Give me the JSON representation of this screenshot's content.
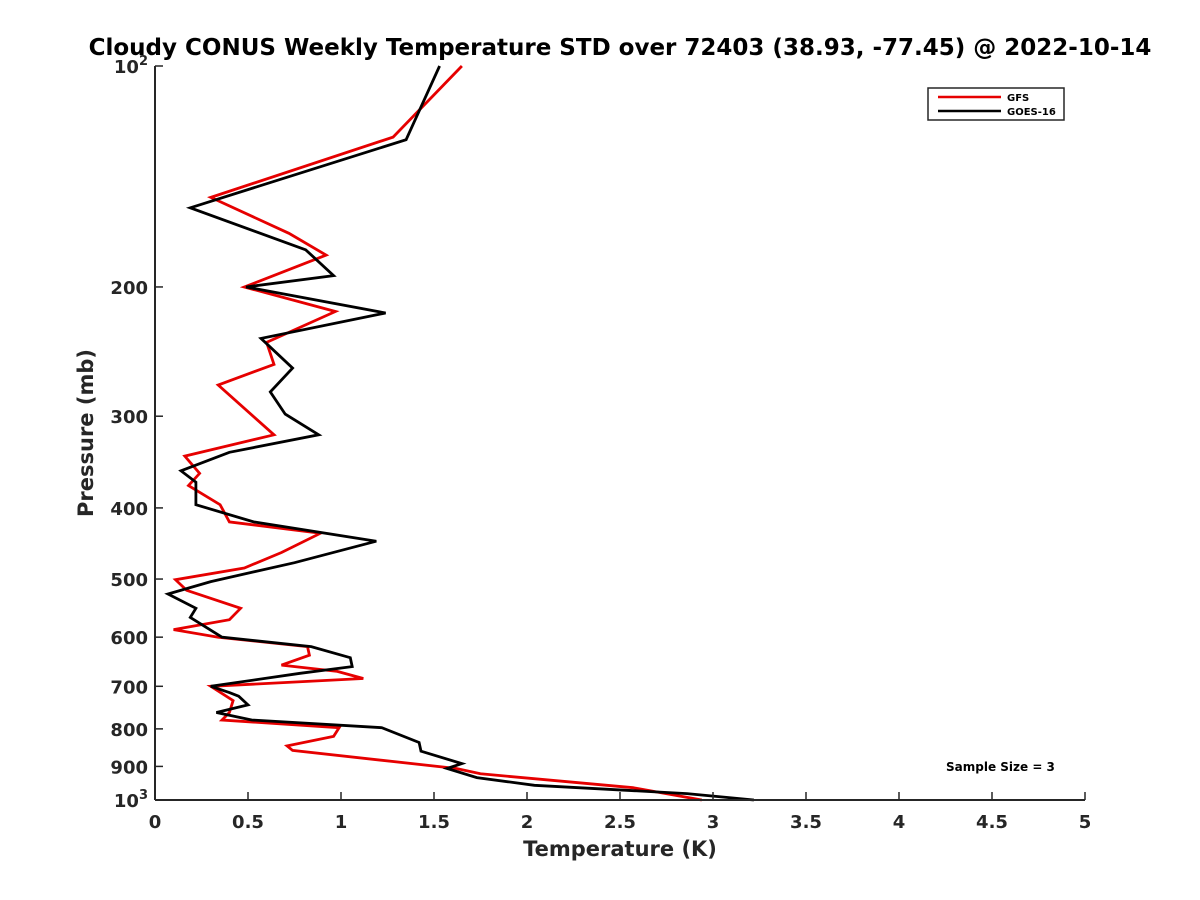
{
  "chart_data": {
    "type": "line",
    "title": "Cloudy CONUS Weekly Temperature STD over 72403 (38.93, -77.45) @ 2022-10-14",
    "xlabel": "Temperature (K)",
    "ylabel": "Pressure (mb)",
    "xlim": [
      0,
      5
    ],
    "ylim": [
      100,
      1000
    ],
    "y_scale": "log",
    "y_reversed": true,
    "grid": false,
    "legend_position": "top-right",
    "annotation": "Sample Size = 3",
    "x_ticks": [
      {
        "value": 0,
        "label": "0"
      },
      {
        "value": 0.5,
        "label": "0.5"
      },
      {
        "value": 1,
        "label": "1"
      },
      {
        "value": 1.5,
        "label": "1.5"
      },
      {
        "value": 2,
        "label": "2"
      },
      {
        "value": 2.5,
        "label": "2.5"
      },
      {
        "value": 3,
        "label": "3"
      },
      {
        "value": 3.5,
        "label": "3.5"
      },
      {
        "value": 4,
        "label": "4"
      },
      {
        "value": 4.5,
        "label": "4.5"
      },
      {
        "value": 5,
        "label": "5"
      }
    ],
    "y_ticks": [
      {
        "value": 100,
        "base": "10",
        "exp": "2"
      },
      {
        "value": 200,
        "label": "200"
      },
      {
        "value": 300,
        "label": "300"
      },
      {
        "value": 400,
        "label": "400"
      },
      {
        "value": 500,
        "label": "500"
      },
      {
        "value": 600,
        "label": "600"
      },
      {
        "value": 700,
        "label": "700"
      },
      {
        "value": 800,
        "label": "800"
      },
      {
        "value": 900,
        "label": "900"
      },
      {
        "value": 1000,
        "base": "10",
        "exp": "3"
      }
    ],
    "series": [
      {
        "name": "GFS",
        "color": "#e60000",
        "points": [
          [
            1.65,
            100
          ],
          [
            1.28,
            125
          ],
          [
            0.3,
            151
          ],
          [
            0.72,
            169
          ],
          [
            0.92,
            181
          ],
          [
            0.48,
            200
          ],
          [
            0.97,
            216
          ],
          [
            0.6,
            238
          ],
          [
            0.64,
            255
          ],
          [
            0.34,
            272
          ],
          [
            0.64,
            318
          ],
          [
            0.16,
            340
          ],
          [
            0.24,
            359
          ],
          [
            0.18,
            373
          ],
          [
            0.35,
            396
          ],
          [
            0.4,
            418
          ],
          [
            0.89,
            433
          ],
          [
            0.68,
            460
          ],
          [
            0.48,
            483
          ],
          [
            0.11,
            501
          ],
          [
            0.17,
            518
          ],
          [
            0.46,
            548
          ],
          [
            0.4,
            568
          ],
          [
            0.1,
            586
          ],
          [
            0.34,
            600
          ],
          [
            0.82,
            618
          ],
          [
            0.83,
            635
          ],
          [
            0.68,
            655
          ],
          [
            0.98,
            668
          ],
          [
            1.12,
            683
          ],
          [
            0.3,
            700
          ],
          [
            0.42,
            732
          ],
          [
            0.4,
            760
          ],
          [
            0.36,
            778
          ],
          [
            0.99,
            797
          ],
          [
            0.96,
            819
          ],
          [
            0.71,
            844
          ],
          [
            0.74,
            856
          ],
          [
            1.62,
            906
          ],
          [
            1.75,
            921
          ],
          [
            2.57,
            962
          ],
          [
            2.94,
            1000
          ]
        ]
      },
      {
        "name": "GOES-16",
        "color": "#000000",
        "points": [
          [
            1.53,
            100
          ],
          [
            1.35,
            126
          ],
          [
            0.19,
            156
          ],
          [
            0.81,
            178
          ],
          [
            0.96,
            193
          ],
          [
            0.49,
            200
          ],
          [
            1.24,
            217
          ],
          [
            0.57,
            235
          ],
          [
            0.74,
            258
          ],
          [
            0.62,
            278
          ],
          [
            0.7,
            298
          ],
          [
            0.88,
            318
          ],
          [
            0.4,
            336
          ],
          [
            0.14,
            356
          ],
          [
            0.22,
            369
          ],
          [
            0.22,
            396
          ],
          [
            0.53,
            418
          ],
          [
            1.19,
            444
          ],
          [
            0.75,
            475
          ],
          [
            0.3,
            504
          ],
          [
            0.07,
            524
          ],
          [
            0.22,
            548
          ],
          [
            0.19,
            564
          ],
          [
            0.36,
            600
          ],
          [
            0.84,
            618
          ],
          [
            1.05,
            640
          ],
          [
            1.06,
            658
          ],
          [
            0.78,
            672
          ],
          [
            0.3,
            700
          ],
          [
            0.4,
            714
          ],
          [
            0.45,
            722
          ],
          [
            0.5,
            742
          ],
          [
            0.33,
            760
          ],
          [
            0.52,
            778
          ],
          [
            1.22,
            797
          ],
          [
            1.42,
            835
          ],
          [
            1.43,
            858
          ],
          [
            1.65,
            892
          ],
          [
            1.57,
            906
          ],
          [
            1.73,
            932
          ],
          [
            2.04,
            955
          ],
          [
            2.86,
            980
          ],
          [
            3.22,
            1000
          ]
        ]
      }
    ]
  }
}
